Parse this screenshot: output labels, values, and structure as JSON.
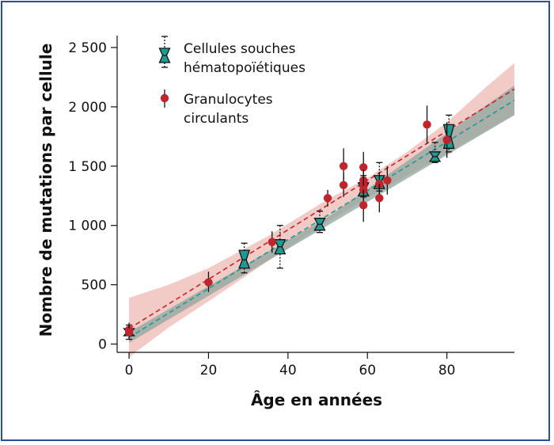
{
  "chart_data": {
    "type": "scatter",
    "xlabel": "Âge en années",
    "ylabel": "Nombre de mutations par cellule",
    "xlim": [
      -3,
      97
    ],
    "ylim": [
      -70,
      2600
    ],
    "x_ticks": [
      0,
      20,
      40,
      60,
      80
    ],
    "x_tick_labels": [
      "0",
      "20",
      "40",
      "60",
      "80"
    ],
    "y_ticks": [
      0,
      500,
      1000,
      1500,
      2000,
      2500
    ],
    "y_tick_labels": [
      "0",
      "500",
      "1 000",
      "1 500",
      "2 000",
      "2 500"
    ],
    "grid": false,
    "legend_position": "top-left",
    "series": [
      {
        "name": "Cellules souches hématopoïétiques",
        "name_lines": [
          "Cellules souches",
          "hématopoïétiques"
        ],
        "marker": "notched-box",
        "color": "#1f9a90",
        "points": [
          {
            "x": 0,
            "lo": 40,
            "q1": 70,
            "med": 100,
            "q3": 130,
            "hi": 160
          },
          {
            "x": 29,
            "lo": 600,
            "q1": 640,
            "med": 710,
            "q3": 790,
            "hi": 850
          },
          {
            "x": 38,
            "lo": 640,
            "q1": 760,
            "med": 820,
            "q3": 880,
            "hi": 1000
          },
          {
            "x": 48,
            "lo": 940,
            "q1": 960,
            "med": 1010,
            "q3": 1060,
            "hi": 1120
          },
          {
            "x": 59,
            "lo": 1240,
            "q1": 1250,
            "med": 1300,
            "q3": 1360,
            "hi": 1420
          },
          {
            "x": 63,
            "lo": 1290,
            "q1": 1310,
            "med": 1370,
            "q3": 1420,
            "hi": 1530
          },
          {
            "x": 77,
            "lo": 1530,
            "q1": 1540,
            "med": 1580,
            "q3": 1620,
            "hi": 1700
          },
          {
            "x": 80.5,
            "lo": 1620,
            "q1": 1650,
            "med": 1750,
            "q3": 1850,
            "hi": 1930
          }
        ],
        "fit": {
          "x": [
            0,
            97
          ],
          "y": [
            55,
            2055
          ]
        },
        "band": {
          "x": [
            0,
            50,
            97
          ],
          "lower": [
            10,
            1000,
            1930
          ],
          "upper": [
            100,
            1070,
            2180
          ]
        }
      },
      {
        "name": "Granulocytes circulants",
        "name_lines": [
          "Granulocytes",
          "circulants"
        ],
        "marker": "circle",
        "color": "#c0252d",
        "points": [
          {
            "x": 0,
            "y": 120,
            "lo": 60,
            "hi": 180
          },
          {
            "x": 0,
            "y": 100,
            "lo": 40,
            "hi": 160
          },
          {
            "x": 20,
            "y": 520,
            "lo": 440,
            "hi": 610
          },
          {
            "x": 36,
            "y": 860,
            "lo": 770,
            "hi": 950
          },
          {
            "x": 50,
            "y": 1230,
            "lo": 1160,
            "hi": 1300
          },
          {
            "x": 54,
            "y": 1500,
            "lo": 1360,
            "hi": 1650
          },
          {
            "x": 54,
            "y": 1340,
            "lo": 1240,
            "hi": 1440
          },
          {
            "x": 59,
            "y": 1490,
            "lo": 1360,
            "hi": 1620
          },
          {
            "x": 59,
            "y": 1380,
            "lo": 1280,
            "hi": 1470
          },
          {
            "x": 59,
            "y": 1340,
            "lo": 1260,
            "hi": 1430
          },
          {
            "x": 59,
            "y": 1300,
            "lo": 1220,
            "hi": 1380
          },
          {
            "x": 59,
            "y": 1170,
            "lo": 1030,
            "hi": 1300
          },
          {
            "x": 63,
            "y": 1350,
            "lo": 1260,
            "hi": 1440
          },
          {
            "x": 63,
            "y": 1230,
            "lo": 1110,
            "hi": 1350
          },
          {
            "x": 65,
            "y": 1380,
            "lo": 1260,
            "hi": 1500
          },
          {
            "x": 75,
            "y": 1850,
            "lo": 1690,
            "hi": 2010
          },
          {
            "x": 80,
            "y": 1720,
            "lo": 1570,
            "hi": 1870
          }
        ],
        "fit": {
          "x": [
            0,
            97
          ],
          "y": [
            130,
            2150
          ]
        },
        "band": {
          "x": [
            0,
            10,
            20,
            35,
            50,
            60,
            70,
            80,
            90,
            97
          ],
          "lower": [
            -110,
            140,
            360,
            700,
            1030,
            1230,
            1420,
            1610,
            1800,
            1930
          ],
          "upper": [
            390,
            500,
            640,
            910,
            1220,
            1400,
            1620,
            1870,
            2170,
            2370
          ]
        }
      }
    ]
  }
}
